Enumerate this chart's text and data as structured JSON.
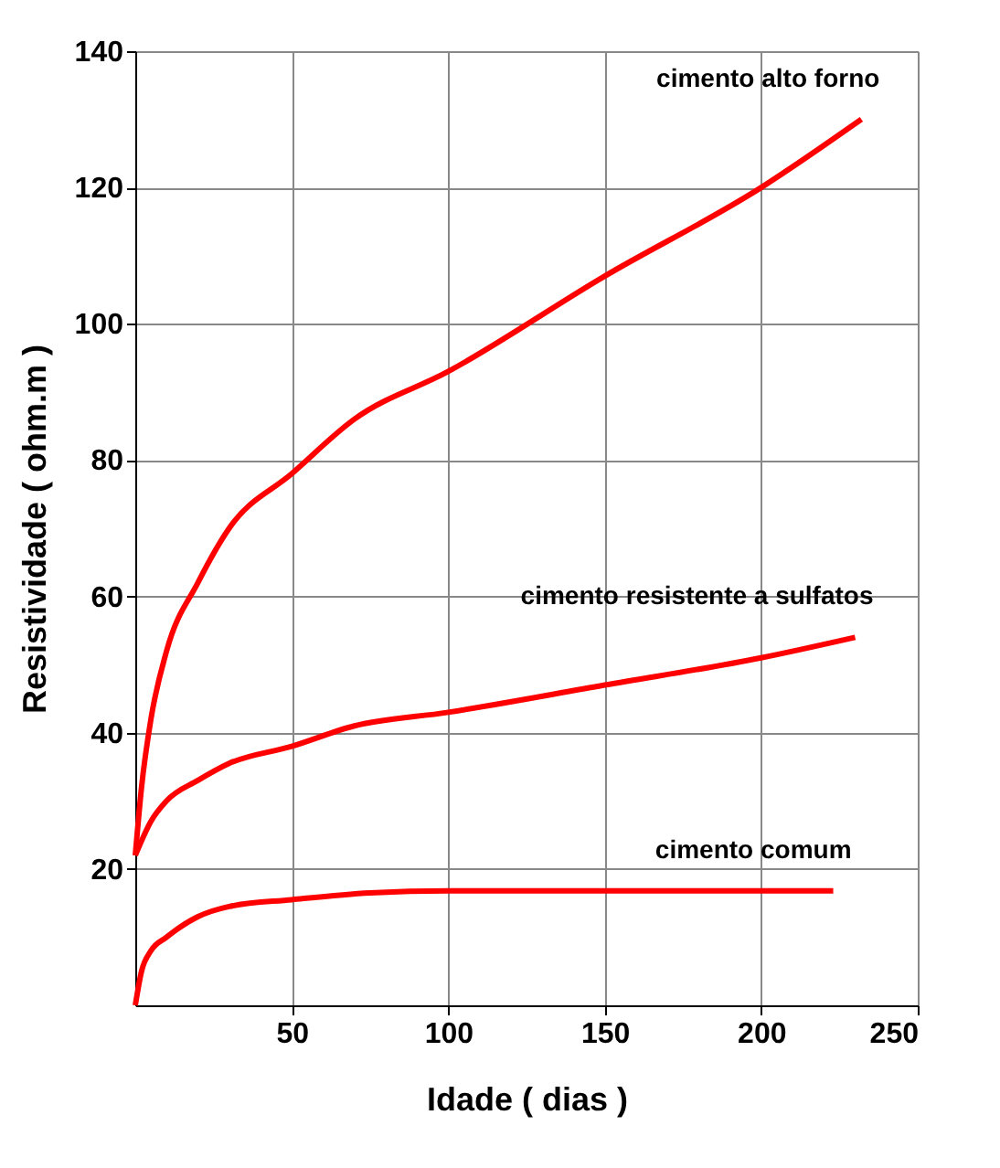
{
  "chart_data": {
    "type": "line",
    "xlabel": "Idade ( dias )",
    "ylabel": "Resistividade ( ohm.m )",
    "xlim": [
      0,
      250
    ],
    "xticks": [
      50,
      100,
      150,
      200,
      250
    ],
    "ylim": [
      0,
      140
    ],
    "yticks": [
      20,
      40,
      60,
      80,
      100,
      120,
      140
    ],
    "grid": true,
    "legend": false,
    "line_style": "solid",
    "marker": "none",
    "series": [
      {
        "name": "cimento alto forno",
        "color": "#ff0000",
        "x": [
          0,
          2,
          5,
          10,
          20,
          30,
          50,
          70,
          100,
          150,
          200,
          232
        ],
        "values": [
          22,
          32,
          42,
          52,
          62,
          70,
          78,
          86,
          93,
          107,
          120,
          130
        ]
      },
      {
        "name": "cimento resistente a sulfatos",
        "color": "#ff0000",
        "x": [
          0,
          5,
          10,
          20,
          30,
          50,
          70,
          100,
          150,
          200,
          230
        ],
        "values": [
          22,
          27,
          30,
          33,
          35.5,
          38,
          41,
          43,
          47,
          51,
          54
        ]
      },
      {
        "name": "cimento comum",
        "color": "#ff0000",
        "x": [
          0,
          2,
          5,
          10,
          20,
          30,
          50,
          75,
          100,
          150,
          223
        ],
        "values": [
          0,
          5,
          8,
          10,
          13,
          14.5,
          15.5,
          16.5,
          16.8,
          16.8,
          16.8
        ]
      }
    ]
  }
}
